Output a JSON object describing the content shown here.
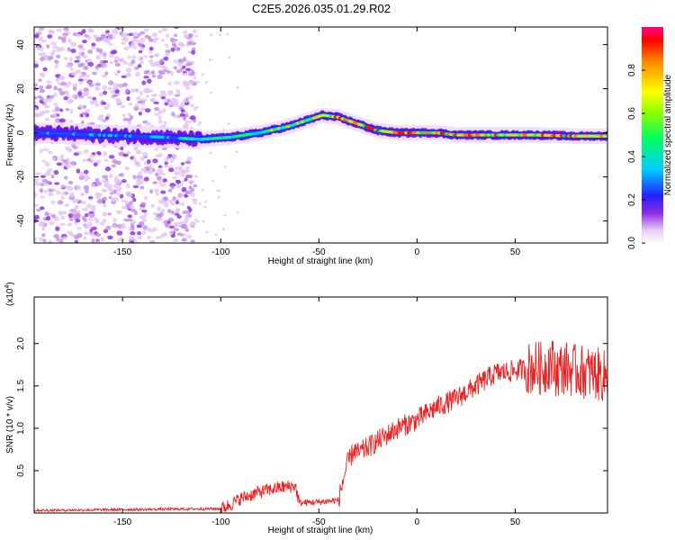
{
  "figure": {
    "title": "C2E5.2026.035.01.29.R02"
  },
  "chart_data": [
    {
      "type": "heatmap",
      "title": "C2E5.2026.035.01.29.R02",
      "xlabel": "Height of straight line (km)",
      "ylabel": "Frequency (Hz)",
      "xlim": [
        -195,
        97
      ],
      "ylim": [
        -50,
        48
      ],
      "xticks": [
        -150,
        -100,
        -50,
        0,
        50
      ],
      "yticks": [
        -40,
        -20,
        0,
        20,
        40
      ],
      "ridge_center": {
        "x": [
          -195,
          -130,
          -110,
          -95,
          -80,
          -65,
          -55,
          -48,
          -40,
          -30,
          -20,
          -10,
          0,
          10,
          20,
          40,
          60,
          80,
          97
        ],
        "y": [
          0,
          -2,
          -3,
          -2,
          0,
          3,
          6,
          8,
          7,
          4,
          1,
          0,
          0,
          0,
          -1,
          -1,
          -1,
          -1.5,
          -1.5
        ]
      },
      "noise_region_x": [
        -195,
        -113
      ],
      "colorbar": {
        "label": "Normalized spectral amplitude",
        "range": [
          0,
          1
        ],
        "ticks": [
          "0.0",
          "0.2",
          "0.4",
          "0.6",
          "0.8"
        ],
        "tick_values": [
          0,
          0.2,
          0.4,
          0.6,
          0.8
        ]
      }
    },
    {
      "type": "line",
      "xlabel": "Height of straight line (km)",
      "ylabel": "SNR (10 * v/v)",
      "y_scale_label": "(x10",
      "y_scale_exponent": "4",
      "xlim": [
        -195,
        97
      ],
      "ylim": [
        0,
        2.55
      ],
      "xticks": [
        -150,
        -100,
        -50,
        0,
        50
      ],
      "yticks": [
        0.5,
        1.0,
        1.5,
        2.0
      ],
      "ytick_labels": [
        "0.5",
        "1.0",
        "1.5",
        "2.0"
      ],
      "series": [
        {
          "name": "SNR",
          "color": "#ee2222",
          "x": [
            -195,
            -150,
            -100,
            -95,
            -90,
            -80,
            -70,
            -62,
            -60,
            -50,
            -40,
            -37,
            -35,
            -32,
            -30,
            -20,
            -10,
            0,
            10,
            20,
            30,
            40,
            50,
            60,
            65,
            68,
            70,
            72,
            75,
            80,
            90,
            97
          ],
          "y": [
            0.03,
            0.04,
            0.05,
            0.1,
            0.17,
            0.25,
            0.3,
            0.32,
            0.12,
            0.13,
            0.15,
            0.45,
            0.6,
            0.75,
            0.7,
            0.85,
            1.0,
            1.1,
            1.25,
            1.35,
            1.5,
            1.65,
            1.68,
            1.72,
            1.7,
            1.8,
            1.7,
            1.68,
            1.72,
            1.68,
            1.65,
            1.6
          ]
        }
      ]
    }
  ]
}
